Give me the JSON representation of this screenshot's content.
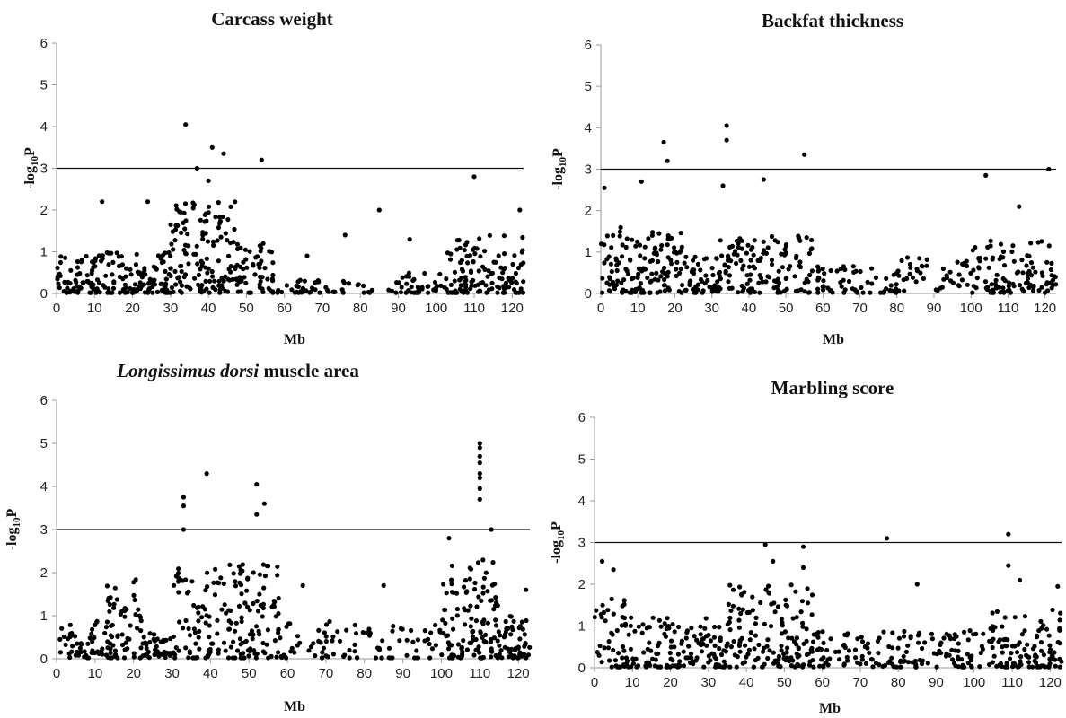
{
  "chart_data": [
    {
      "type": "scatter",
      "title": "Carcass weight",
      "xlabel": "Mb",
      "ylabel": "-log10P",
      "xlim": [
        0,
        123
      ],
      "ylim": [
        0,
        6
      ],
      "xticks": [
        0,
        10,
        20,
        30,
        40,
        50,
        60,
        70,
        80,
        90,
        100,
        110,
        120
      ],
      "yticks": [
        0,
        1,
        2,
        3,
        4,
        5,
        6
      ],
      "threshold": 3,
      "series": [
        {
          "peaks": [
            {
              "x": 34,
              "y": 4.05
            },
            {
              "x": 41,
              "y": 3.5
            },
            {
              "x": 44,
              "y": 3.35
            },
            {
              "x": 54,
              "y": 3.2
            },
            {
              "x": 37,
              "y": 3.0
            },
            {
              "x": 40,
              "y": 2.7
            },
            {
              "x": 110,
              "y": 2.8
            },
            {
              "x": 12,
              "y": 2.2
            },
            {
              "x": 85,
              "y": 2.0
            },
            {
              "x": 122,
              "y": 2.0
            },
            {
              "x": 24,
              "y": 2.2
            },
            {
              "x": 76,
              "y": 1.4
            },
            {
              "x": 93,
              "y": 1.3
            },
            {
              "x": 66,
              "y": 0.9
            }
          ]
        }
      ],
      "profile": [
        {
          "x0": 0,
          "x1": 8,
          "base": 0.9,
          "n": 40
        },
        {
          "x0": 8,
          "x1": 30,
          "base": 1.0,
          "n": 140
        },
        {
          "x0": 30,
          "x1": 47,
          "base": 2.2,
          "n": 130
        },
        {
          "x0": 47,
          "x1": 57,
          "base": 1.2,
          "n": 60
        },
        {
          "x0": 57,
          "x1": 72,
          "base": 0.4,
          "n": 30
        },
        {
          "x0": 72,
          "x1": 90,
          "base": 0.3,
          "n": 20
        },
        {
          "x0": 90,
          "x1": 103,
          "base": 0.5,
          "n": 40
        },
        {
          "x0": 103,
          "x1": 123,
          "base": 1.4,
          "n": 120
        }
      ]
    },
    {
      "type": "scatter",
      "title": "Backfat thickness",
      "xlabel": "Mb",
      "ylabel": "-log10P",
      "xlim": [
        0,
        123
      ],
      "ylim": [
        0,
        6
      ],
      "xticks": [
        0,
        10,
        20,
        30,
        40,
        50,
        60,
        70,
        80,
        90,
        100,
        110,
        120
      ],
      "yticks": [
        0,
        1,
        2,
        3,
        4,
        5,
        6
      ],
      "threshold": 3,
      "series": [
        {
          "peaks": [
            {
              "x": 34,
              "y": 4.05
            },
            {
              "x": 34,
              "y": 3.7
            },
            {
              "x": 17,
              "y": 3.65
            },
            {
              "x": 55,
              "y": 3.35
            },
            {
              "x": 18,
              "y": 3.2
            },
            {
              "x": 121,
              "y": 3.0
            },
            {
              "x": 104,
              "y": 2.85
            },
            {
              "x": 44,
              "y": 2.75
            },
            {
              "x": 1,
              "y": 2.55
            },
            {
              "x": 11,
              "y": 2.7
            },
            {
              "x": 113,
              "y": 2.1
            },
            {
              "x": 33,
              "y": 2.6
            }
          ]
        }
      ],
      "profile": [
        {
          "x0": 0,
          "x1": 10,
          "base": 1.6,
          "n": 60
        },
        {
          "x0": 10,
          "x1": 22,
          "base": 1.5,
          "n": 80
        },
        {
          "x0": 22,
          "x1": 32,
          "base": 0.9,
          "n": 50
        },
        {
          "x0": 32,
          "x1": 58,
          "base": 1.4,
          "n": 130
        },
        {
          "x0": 58,
          "x1": 75,
          "base": 0.7,
          "n": 45
        },
        {
          "x0": 75,
          "x1": 100,
          "base": 0.9,
          "n": 60
        },
        {
          "x0": 100,
          "x1": 123,
          "base": 1.3,
          "n": 110
        }
      ]
    },
    {
      "type": "scatter",
      "title": "Longissimus dorsi muscle area",
      "title_italic": "Longissimus dorsi",
      "title_rest": " muscle area",
      "xlabel": "Mb",
      "ylabel": "-log10P",
      "xlim": [
        0,
        123
      ],
      "ylim": [
        0,
        6
      ],
      "xticks": [
        0,
        10,
        20,
        30,
        40,
        50,
        60,
        70,
        80,
        90,
        100,
        110,
        120
      ],
      "yticks": [
        0,
        1,
        2,
        3,
        4,
        5,
        6
      ],
      "threshold": 3,
      "series": [
        {
          "peaks": [
            {
              "x": 110,
              "y": 5.0
            },
            {
              "x": 110,
              "y": 4.9
            },
            {
              "x": 110,
              "y": 4.7
            },
            {
              "x": 110,
              "y": 4.55
            },
            {
              "x": 110,
              "y": 4.3
            },
            {
              "x": 110,
              "y": 4.2
            },
            {
              "x": 110,
              "y": 3.95
            },
            {
              "x": 110,
              "y": 3.7
            },
            {
              "x": 39,
              "y": 4.3
            },
            {
              "x": 52,
              "y": 4.05
            },
            {
              "x": 33,
              "y": 3.75
            },
            {
              "x": 33,
              "y": 3.55
            },
            {
              "x": 54,
              "y": 3.6
            },
            {
              "x": 52,
              "y": 3.35
            },
            {
              "x": 113,
              "y": 3.0
            },
            {
              "x": 33,
              "y": 3.0
            },
            {
              "x": 102,
              "y": 2.8
            },
            {
              "x": 85,
              "y": 1.7
            },
            {
              "x": 64,
              "y": 1.7
            },
            {
              "x": 122,
              "y": 1.6
            }
          ]
        }
      ],
      "profile": [
        {
          "x0": 0,
          "x1": 13,
          "base": 0.9,
          "n": 50
        },
        {
          "x0": 13,
          "x1": 22,
          "base": 1.9,
          "n": 60
        },
        {
          "x0": 22,
          "x1": 30,
          "base": 0.6,
          "n": 40
        },
        {
          "x0": 30,
          "x1": 58,
          "base": 2.2,
          "n": 180
        },
        {
          "x0": 58,
          "x1": 80,
          "base": 0.9,
          "n": 50
        },
        {
          "x0": 80,
          "x1": 100,
          "base": 0.9,
          "n": 40
        },
        {
          "x0": 100,
          "x1": 115,
          "base": 2.3,
          "n": 120
        },
        {
          "x0": 115,
          "x1": 123,
          "base": 1.0,
          "n": 50
        }
      ]
    },
    {
      "type": "scatter",
      "title": "Marbling score",
      "xlabel": "Mb",
      "ylabel": "-log10P",
      "xlim": [
        0,
        123
      ],
      "ylim": [
        0,
        6
      ],
      "xticks": [
        0,
        10,
        20,
        30,
        40,
        50,
        60,
        70,
        80,
        90,
        100,
        110,
        120
      ],
      "yticks": [
        0,
        1,
        2,
        3,
        4,
        5,
        6
      ],
      "threshold": 3,
      "series": [
        {
          "peaks": [
            {
              "x": 109,
              "y": 3.2
            },
            {
              "x": 77,
              "y": 3.1
            },
            {
              "x": 45,
              "y": 2.95
            },
            {
              "x": 55,
              "y": 2.9
            },
            {
              "x": 2,
              "y": 2.55
            },
            {
              "x": 47,
              "y": 2.55
            },
            {
              "x": 5,
              "y": 2.35
            },
            {
              "x": 109,
              "y": 2.45
            },
            {
              "x": 55,
              "y": 2.4
            },
            {
              "x": 112,
              "y": 2.1
            },
            {
              "x": 85,
              "y": 2.0
            },
            {
              "x": 122,
              "y": 1.95
            }
          ]
        }
      ],
      "profile": [
        {
          "x0": 0,
          "x1": 8,
          "base": 1.7,
          "n": 40
        },
        {
          "x0": 8,
          "x1": 35,
          "base": 1.2,
          "n": 140
        },
        {
          "x0": 35,
          "x1": 58,
          "base": 2.0,
          "n": 140
        },
        {
          "x0": 58,
          "x1": 80,
          "base": 0.9,
          "n": 70
        },
        {
          "x0": 80,
          "x1": 103,
          "base": 0.9,
          "n": 80
        },
        {
          "x0": 103,
          "x1": 123,
          "base": 1.4,
          "n": 110
        }
      ]
    }
  ]
}
